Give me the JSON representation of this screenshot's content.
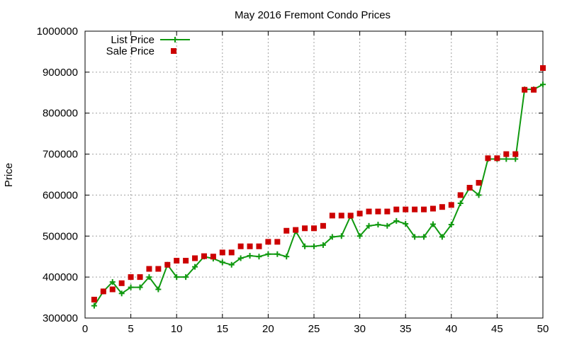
{
  "chart_data": {
    "type": "line",
    "title": "May 2016 Fremont Condo Prices",
    "xlabel": "",
    "ylabel": "Price",
    "xlim": [
      0,
      50
    ],
    "ylim": [
      300000,
      1000000
    ],
    "xticks": [
      0,
      5,
      10,
      15,
      20,
      25,
      30,
      35,
      40,
      45,
      50
    ],
    "yticks": [
      300000,
      400000,
      500000,
      600000,
      700000,
      800000,
      900000,
      1000000
    ],
    "grid": true,
    "legend_position": "top-left",
    "x": [
      1,
      2,
      3,
      4,
      5,
      6,
      7,
      8,
      9,
      10,
      11,
      12,
      13,
      14,
      15,
      16,
      17,
      18,
      19,
      20,
      21,
      22,
      23,
      24,
      25,
      26,
      27,
      28,
      29,
      30,
      31,
      32,
      33,
      34,
      35,
      36,
      37,
      38,
      39,
      40,
      41,
      42,
      43,
      44,
      45,
      46,
      47,
      48,
      49,
      50
    ],
    "series": [
      {
        "name": "List Price",
        "style": "line-plus",
        "color": "#109910",
        "values": [
          330000,
          365000,
          388000,
          360000,
          375000,
          375000,
          400000,
          370000,
          430000,
          400000,
          400000,
          425000,
          450000,
          445000,
          436000,
          430000,
          446000,
          452000,
          450000,
          456000,
          456000,
          450000,
          512000,
          475000,
          475000,
          478000,
          498000,
          500000,
          549000,
          500000,
          525000,
          528000,
          525000,
          537000,
          530000,
          498000,
          498000,
          529000,
          498000,
          528000,
          580000,
          618000,
          600000,
          688000,
          688000,
          688000,
          688000,
          858000,
          858000,
          870000
        ]
      },
      {
        "name": "Sale Price",
        "style": "square",
        "color": "#cc0000",
        "values": [
          345000,
          365000,
          370000,
          385000,
          400000,
          400000,
          420000,
          420000,
          430000,
          440000,
          440000,
          446000,
          451000,
          450000,
          460000,
          460000,
          475000,
          475000,
          475000,
          486000,
          486000,
          513000,
          515000,
          519000,
          519000,
          525000,
          550000,
          550000,
          550000,
          555000,
          560000,
          560000,
          560000,
          565000,
          565000,
          565000,
          565000,
          567000,
          571000,
          576000,
          600000,
          618000,
          630000,
          690000,
          690000,
          700000,
          700000,
          857000,
          857000,
          910000
        ]
      }
    ]
  }
}
